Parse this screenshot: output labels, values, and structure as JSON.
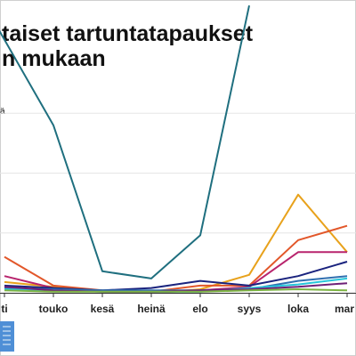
{
  "chart_data": {
    "type": "line",
    "title": "taiset tartuntatapaukset\nn mukaan",
    "legend_fragment": "ä",
    "categories": [
      "ti",
      "touko",
      "kesä",
      "heinä",
      "elo",
      "syys",
      "loka",
      "mar"
    ],
    "ylim": [
      0,
      100
    ],
    "series": [
      {
        "color": "#1f6f7f",
        "values": [
          null,
          70,
          9,
          6,
          24,
          120,
          null,
          null
        ],
        "x_start": -0.4,
        "start_value": 120
      },
      {
        "color": "#e8a21c",
        "values": [
          4.5,
          2.5,
          0.5,
          0,
          1.5,
          7.5,
          41,
          17
        ]
      },
      {
        "color": "#e2572a",
        "values": [
          15,
          3,
          1,
          0.5,
          3,
          3,
          22,
          28
        ]
      },
      {
        "color": "#b8246d",
        "values": [
          7,
          2,
          0.5,
          0,
          1,
          2.5,
          17,
          17
        ]
      },
      {
        "color": "#1a237e",
        "values": [
          3,
          2,
          1,
          2,
          5,
          3,
          7,
          13
        ]
      },
      {
        "color": "#2f6fb0",
        "values": [
          2,
          1.5,
          1,
          1,
          1,
          1.5,
          5,
          7
        ]
      },
      {
        "color": "#26c6da",
        "values": [
          1.5,
          1,
          0.5,
          0.5,
          0.5,
          2,
          3.5,
          6
        ]
      },
      {
        "color": "#6d2077",
        "values": [
          2.5,
          1,
          0.5,
          0.5,
          1,
          1.5,
          2.5,
          4
        ]
      },
      {
        "color": "#7cb342",
        "values": [
          1,
          0.5,
          0.5,
          0.5,
          0.5,
          1,
          1.5,
          1
        ]
      }
    ]
  }
}
